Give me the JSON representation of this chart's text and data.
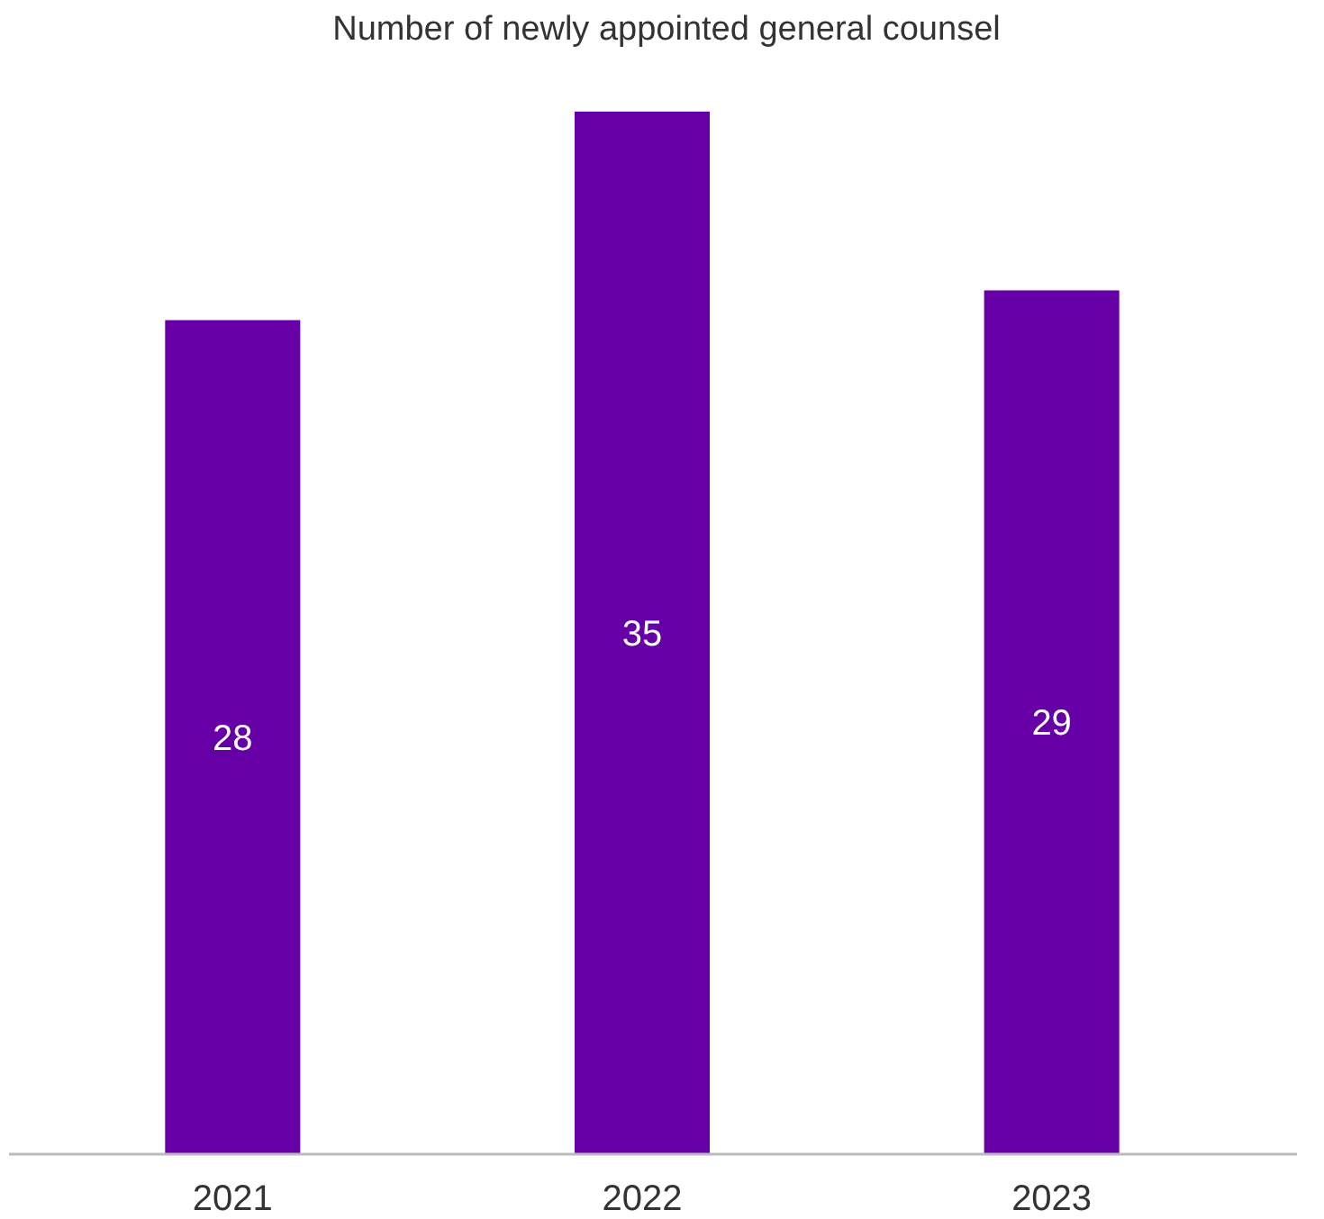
{
  "chart_data": {
    "type": "bar",
    "title": "Number of newly appointed general counsel",
    "categories": [
      "2021",
      "2022",
      "2023"
    ],
    "values": [
      28,
      35,
      29
    ],
    "color": "#6600a6",
    "data_labels": true
  }
}
